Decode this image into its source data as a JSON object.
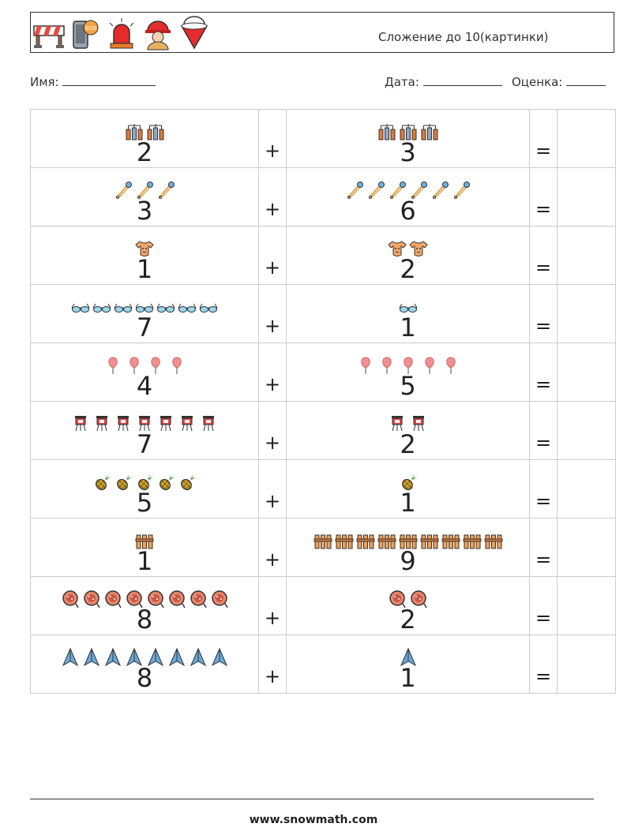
{
  "header": {
    "title": "Сложение до 10(картинки)",
    "icons": [
      "road-barrier-icon",
      "phone-sos-icon",
      "siren-icon",
      "firefighter-icon",
      "fire-bucket-icon"
    ]
  },
  "info": {
    "name_label": "Имя:",
    "date_label": "Дата:",
    "grade_label": "Оценка:"
  },
  "operators": {
    "plus": "+",
    "equals": "="
  },
  "rows": [
    {
      "icon": "gas-cylinders-icon",
      "a": "2",
      "b": "3",
      "a_count": 2,
      "b_count": 3
    },
    {
      "icon": "safety-pin-icon",
      "a": "3",
      "b": "6",
      "a_count": 3,
      "b_count": 6
    },
    {
      "icon": "baby-onesie-icon",
      "a": "1",
      "b": "2",
      "a_count": 1,
      "b_count": 2
    },
    {
      "icon": "glasses-icon",
      "a": "7",
      "b": "1",
      "a_count": 7,
      "b_count": 1
    },
    {
      "icon": "cotton-candy-icon",
      "a": "4",
      "b": "5",
      "a_count": 4,
      "b_count": 5
    },
    {
      "icon": "lantern-icon",
      "a": "7",
      "b": "2",
      "a_count": 7,
      "b_count": 2
    },
    {
      "icon": "pineapple-icon",
      "a": "5",
      "b": "1",
      "a_count": 5,
      "b_count": 1
    },
    {
      "icon": "fence-icon",
      "a": "1",
      "b": "9",
      "a_count": 1,
      "b_count": 9
    },
    {
      "icon": "cookie-icon",
      "a": "8",
      "b": "2",
      "a_count": 8,
      "b_count": 2
    },
    {
      "icon": "paper-plane-icon",
      "a": "8",
      "b": "1",
      "a_count": 8,
      "b_count": 1
    }
  ],
  "footer": {
    "url": "www.snowmath.com"
  }
}
